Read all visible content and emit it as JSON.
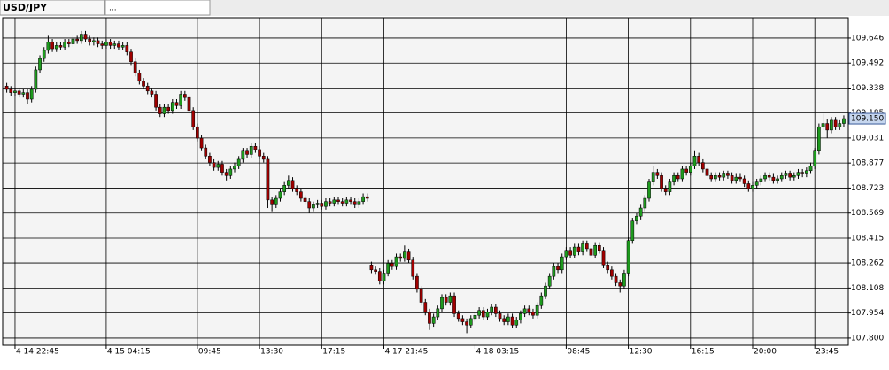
{
  "tabs": [
    "USD/JPY",
    "..."
  ],
  "chart_data": {
    "type": "candlestick",
    "ylim": [
      107.756,
      109.771
    ],
    "yticks": [
      109.646,
      109.492,
      109.338,
      109.185,
      109.031,
      108.877,
      108.723,
      108.569,
      108.415,
      108.262,
      108.108,
      107.954,
      {
        "value": 107.8,
        "label": "107.800"
      }
    ],
    "last_price": {
      "value": 109.15,
      "label": "109.150"
    },
    "grid": true,
    "up_color": "#1e9a1e",
    "down_color": "#a00000",
    "x": [
      null,
      null,
      "4 14 22:45",
      null,
      null,
      null,
      null,
      null,
      null,
      null,
      null,
      null,
      null,
      null,
      null,
      null,
      null,
      null,
      null,
      null,
      null,
      null,
      null,
      null,
      "4 15 04:15",
      null,
      null,
      null,
      null,
      null,
      null,
      null,
      null,
      null,
      null,
      null,
      null,
      null,
      null,
      null,
      null,
      null,
      null,
      null,
      null,
      null,
      "09:45",
      null,
      null,
      null,
      null,
      null,
      null,
      null,
      null,
      null,
      null,
      null,
      null,
      null,
      null,
      "13:30",
      null,
      null,
      null,
      null,
      null,
      null,
      null,
      null,
      null,
      null,
      null,
      null,
      null,
      null,
      "17:15",
      null,
      null,
      null,
      null,
      null,
      null,
      null,
      null,
      null,
      null,
      null,
      null,
      null,
      null,
      "4 17 21:45",
      null,
      null,
      null,
      null,
      null,
      null,
      null,
      null,
      null,
      null,
      null,
      null,
      null,
      null,
      null,
      null,
      null,
      null,
      null,
      null,
      null,
      "4 18 03:15",
      null,
      null,
      null,
      null,
      null,
      null,
      null,
      null,
      null,
      null,
      null,
      null,
      null,
      null,
      null,
      null,
      null,
      null,
      null,
      null,
      null,
      "08:45",
      null,
      null,
      null,
      null,
      null,
      null,
      null,
      null,
      null,
      null,
      null,
      null,
      null,
      null,
      "12:30",
      null,
      null,
      null,
      null,
      null,
      null,
      null,
      null,
      null,
      null,
      null,
      null,
      null,
      null,
      "16:15",
      null,
      null,
      null,
      null,
      null,
      null,
      null,
      null,
      null,
      null,
      null,
      null,
      null,
      null,
      "20:00",
      null,
      null,
      null,
      null,
      null,
      null,
      null,
      null,
      null,
      null,
      null,
      null,
      null,
      null,
      "23:45",
      null,
      null,
      null,
      null,
      null,
      null,
      null
    ],
    "candles": [
      [
        109.35,
        109.37,
        109.31,
        109.33
      ],
      [
        109.33,
        109.35,
        109.29,
        109.31
      ],
      [
        109.31,
        109.34,
        109.29,
        109.32
      ],
      [
        109.32,
        109.34,
        109.28,
        109.3
      ],
      [
        109.3,
        109.33,
        109.28,
        109.31
      ],
      [
        109.31,
        109.33,
        109.24,
        109.27
      ],
      [
        109.27,
        109.35,
        109.25,
        109.33
      ],
      [
        109.33,
        109.47,
        109.31,
        109.45
      ],
      [
        109.45,
        109.54,
        109.43,
        109.52
      ],
      [
        109.52,
        109.59,
        109.5,
        109.57
      ],
      [
        109.57,
        109.66,
        109.55,
        109.62
      ],
      [
        109.62,
        109.64,
        109.56,
        109.58
      ],
      [
        109.58,
        109.62,
        109.56,
        109.6
      ],
      [
        109.6,
        109.62,
        109.57,
        109.59
      ],
      [
        109.59,
        109.64,
        109.57,
        109.62
      ],
      [
        109.62,
        109.64,
        109.59,
        109.61
      ],
      [
        109.61,
        109.66,
        109.59,
        109.64
      ],
      [
        109.64,
        109.66,
        109.61,
        109.63
      ],
      [
        109.63,
        109.69,
        109.61,
        109.67
      ],
      [
        109.67,
        109.69,
        109.62,
        109.64
      ],
      [
        109.64,
        109.66,
        109.6,
        109.62
      ],
      [
        109.62,
        109.65,
        109.6,
        109.63
      ],
      [
        109.63,
        109.65,
        109.59,
        109.61
      ],
      [
        109.61,
        109.63,
        109.58,
        109.6
      ],
      [
        109.6,
        109.64,
        109.58,
        109.62
      ],
      [
        109.62,
        109.64,
        109.58,
        109.6
      ],
      [
        109.6,
        109.63,
        109.58,
        109.61
      ],
      [
        109.61,
        109.63,
        109.57,
        109.59
      ],
      [
        109.59,
        109.62,
        109.57,
        109.6
      ],
      [
        109.6,
        109.62,
        109.54,
        109.56
      ],
      [
        109.56,
        109.58,
        109.48,
        109.5
      ],
      [
        109.5,
        109.52,
        109.41,
        109.43
      ],
      [
        109.43,
        109.45,
        109.36,
        109.38
      ],
      [
        109.38,
        109.4,
        109.33,
        109.35
      ],
      [
        109.35,
        109.37,
        109.3,
        109.32
      ],
      [
        109.32,
        109.34,
        109.28,
        109.3
      ],
      [
        109.3,
        109.32,
        109.2,
        109.22
      ],
      [
        109.22,
        109.24,
        109.16,
        109.18
      ],
      [
        109.18,
        109.24,
        109.16,
        109.22
      ],
      [
        109.22,
        109.24,
        109.18,
        109.2
      ],
      [
        109.2,
        109.27,
        109.18,
        109.25
      ],
      [
        109.25,
        109.27,
        109.21,
        109.23
      ],
      [
        109.23,
        109.32,
        109.21,
        109.3
      ],
      [
        109.3,
        109.32,
        109.26,
        109.28
      ],
      [
        109.28,
        109.3,
        109.18,
        109.2
      ],
      [
        109.2,
        109.22,
        109.08,
        109.1
      ],
      [
        109.1,
        109.12,
        109.01,
        109.03
      ],
      [
        109.03,
        109.05,
        108.95,
        108.97
      ],
      [
        108.97,
        108.99,
        108.9,
        108.92
      ],
      [
        108.92,
        108.94,
        108.86,
        108.88
      ],
      [
        108.88,
        108.9,
        108.83,
        108.85
      ],
      [
        108.85,
        108.89,
        108.83,
        108.87
      ],
      [
        108.87,
        108.89,
        108.8,
        108.82
      ],
      [
        108.82,
        108.84,
        108.77,
        108.8
      ],
      [
        108.8,
        108.86,
        108.78,
        108.84
      ],
      [
        108.84,
        108.88,
        108.82,
        108.86
      ],
      [
        108.86,
        108.92,
        108.84,
        108.9
      ],
      [
        108.9,
        108.97,
        108.88,
        108.95
      ],
      [
        108.95,
        108.97,
        108.91,
        108.93
      ],
      [
        108.93,
        109.0,
        108.91,
        108.98
      ],
      [
        108.98,
        109.0,
        108.94,
        108.96
      ],
      [
        108.96,
        108.98,
        108.9,
        108.92
      ],
      [
        108.92,
        108.94,
        108.88,
        108.9
      ],
      [
        108.9,
        108.92,
        108.6,
        108.65
      ],
      [
        108.65,
        108.67,
        108.58,
        108.62
      ],
      [
        108.62,
        108.68,
        108.6,
        108.66
      ],
      [
        108.66,
        108.72,
        108.64,
        108.7
      ],
      [
        108.7,
        108.76,
        108.68,
        108.74
      ],
      [
        108.74,
        108.8,
        108.72,
        108.77
      ],
      [
        108.77,
        108.79,
        108.7,
        108.72
      ],
      [
        108.72,
        108.74,
        108.68,
        108.7
      ],
      [
        108.7,
        108.72,
        108.64,
        108.66
      ],
      [
        108.66,
        108.68,
        108.62,
        108.64
      ],
      [
        108.64,
        108.66,
        108.57,
        108.6
      ],
      [
        108.6,
        108.64,
        108.58,
        108.62
      ],
      [
        108.62,
        108.65,
        108.6,
        108.63
      ],
      [
        108.63,
        108.65,
        108.59,
        108.61
      ],
      [
        108.61,
        108.66,
        108.59,
        108.64
      ],
      [
        108.64,
        108.66,
        108.61,
        108.63
      ],
      [
        108.63,
        108.67,
        108.61,
        108.65
      ],
      [
        108.65,
        108.67,
        108.62,
        108.64
      ],
      [
        108.64,
        108.66,
        108.61,
        108.63
      ],
      [
        108.63,
        108.67,
        108.61,
        108.65
      ],
      [
        108.65,
        108.67,
        108.62,
        108.64
      ],
      [
        108.64,
        108.66,
        108.6,
        108.62
      ],
      [
        108.62,
        108.66,
        108.6,
        108.64
      ],
      [
        108.64,
        108.69,
        108.62,
        108.67
      ],
      [
        108.67,
        108.69,
        108.64,
        108.66
      ],
      [
        108.25,
        108.27,
        108.2,
        108.22
      ],
      [
        108.22,
        108.24,
        108.19,
        108.21
      ],
      [
        108.21,
        108.23,
        108.13,
        108.15
      ],
      [
        108.15,
        108.22,
        108.13,
        108.2
      ],
      [
        108.2,
        108.28,
        108.18,
        108.26
      ],
      [
        108.26,
        108.28,
        108.22,
        108.24
      ],
      [
        108.24,
        108.32,
        108.22,
        108.3
      ],
      [
        108.3,
        108.32,
        108.27,
        108.29
      ],
      [
        108.29,
        108.37,
        108.27,
        108.33
      ],
      [
        108.33,
        108.35,
        108.26,
        108.28
      ],
      [
        108.28,
        108.3,
        108.16,
        108.18
      ],
      [
        108.18,
        108.2,
        108.08,
        108.1
      ],
      [
        108.1,
        108.12,
        108.0,
        108.02
      ],
      [
        108.02,
        108.04,
        107.94,
        107.96
      ],
      [
        107.96,
        107.98,
        107.85,
        107.89
      ],
      [
        107.89,
        107.95,
        107.87,
        107.93
      ],
      [
        107.93,
        108.0,
        107.91,
        107.98
      ],
      [
        107.98,
        108.07,
        107.96,
        108.05
      ],
      [
        108.05,
        108.07,
        108.0,
        108.02
      ],
      [
        108.02,
        108.08,
        108.0,
        108.06
      ],
      [
        108.06,
        108.08,
        107.93,
        107.95
      ],
      [
        107.95,
        107.97,
        107.9,
        107.92
      ],
      [
        107.92,
        107.94,
        107.88,
        107.9
      ],
      [
        107.9,
        107.92,
        107.83,
        107.88
      ],
      [
        107.88,
        107.94,
        107.86,
        107.92
      ],
      [
        107.92,
        107.96,
        107.9,
        107.94
      ],
      [
        107.94,
        107.99,
        107.92,
        107.97
      ],
      [
        107.97,
        107.99,
        107.91,
        107.93
      ],
      [
        107.93,
        107.98,
        107.91,
        107.96
      ],
      [
        107.96,
        108.01,
        107.94,
        107.99
      ],
      [
        107.99,
        108.01,
        107.93,
        107.95
      ],
      [
        107.95,
        107.97,
        107.9,
        107.92
      ],
      [
        107.92,
        107.94,
        107.88,
        107.9
      ],
      [
        107.9,
        107.95,
        107.88,
        107.93
      ],
      [
        107.93,
        107.95,
        107.86,
        107.88
      ],
      [
        107.88,
        107.93,
        107.86,
        107.91
      ],
      [
        107.91,
        107.97,
        107.89,
        107.95
      ],
      [
        107.95,
        108.0,
        107.93,
        107.98
      ],
      [
        107.98,
        108.0,
        107.94,
        107.96
      ],
      [
        107.96,
        107.98,
        107.92,
        107.94
      ],
      [
        107.94,
        108.02,
        107.92,
        108.0
      ],
      [
        108.0,
        108.08,
        107.98,
        108.06
      ],
      [
        108.06,
        108.14,
        108.04,
        108.12
      ],
      [
        108.12,
        108.2,
        108.1,
        108.18
      ],
      [
        108.18,
        108.26,
        108.16,
        108.24
      ],
      [
        108.24,
        108.26,
        108.2,
        108.22
      ],
      [
        108.22,
        108.32,
        108.2,
        108.3
      ],
      [
        108.3,
        108.36,
        108.28,
        108.34
      ],
      [
        108.34,
        108.36,
        108.29,
        108.31
      ],
      [
        108.31,
        108.38,
        108.29,
        108.36
      ],
      [
        108.36,
        108.38,
        108.31,
        108.33
      ],
      [
        108.33,
        108.4,
        108.31,
        108.38
      ],
      [
        108.38,
        108.4,
        108.33,
        108.35
      ],
      [
        108.35,
        108.37,
        108.29,
        108.31
      ],
      [
        108.31,
        108.39,
        108.29,
        108.37
      ],
      [
        108.37,
        108.39,
        108.32,
        108.34
      ],
      [
        108.34,
        108.36,
        108.23,
        108.25
      ],
      [
        108.25,
        108.27,
        108.2,
        108.22
      ],
      [
        108.22,
        108.24,
        108.16,
        108.18
      ],
      [
        108.18,
        108.2,
        108.12,
        108.14
      ],
      [
        108.14,
        108.16,
        108.08,
        108.12
      ],
      [
        108.12,
        108.22,
        108.1,
        108.2
      ],
      [
        108.2,
        108.42,
        108.18,
        108.4
      ],
      [
        108.4,
        108.54,
        108.38,
        108.52
      ],
      [
        108.52,
        108.57,
        108.5,
        108.55
      ],
      [
        108.55,
        108.62,
        108.53,
        108.6
      ],
      [
        108.6,
        108.68,
        108.58,
        108.66
      ],
      [
        108.66,
        108.78,
        108.64,
        108.76
      ],
      [
        108.76,
        108.86,
        108.74,
        108.82
      ],
      [
        108.82,
        108.84,
        108.78,
        108.8
      ],
      [
        108.8,
        108.82,
        108.7,
        108.72
      ],
      [
        108.72,
        108.74,
        108.68,
        108.7
      ],
      [
        108.7,
        108.78,
        108.68,
        108.76
      ],
      [
        108.76,
        108.82,
        108.74,
        108.8
      ],
      [
        108.8,
        108.82,
        108.76,
        108.78
      ],
      [
        108.78,
        108.86,
        108.76,
        108.84
      ],
      [
        108.84,
        108.86,
        108.8,
        108.82
      ],
      [
        108.82,
        108.88,
        108.8,
        108.86
      ],
      [
        108.86,
        108.95,
        108.84,
        108.92
      ],
      [
        108.92,
        108.94,
        108.86,
        108.88
      ],
      [
        108.88,
        108.9,
        108.82,
        108.84
      ],
      [
        108.84,
        108.86,
        108.78,
        108.8
      ],
      [
        108.8,
        108.82,
        108.76,
        108.78
      ],
      [
        108.78,
        108.82,
        108.76,
        108.8
      ],
      [
        108.8,
        108.82,
        108.77,
        108.79
      ],
      [
        108.79,
        108.83,
        108.77,
        108.81
      ],
      [
        108.81,
        108.83,
        108.78,
        108.8
      ],
      [
        108.8,
        108.82,
        108.75,
        108.77
      ],
      [
        108.77,
        108.81,
        108.75,
        108.79
      ],
      [
        108.79,
        108.81,
        108.76,
        108.78
      ],
      [
        108.78,
        108.8,
        108.73,
        108.75
      ],
      [
        108.75,
        108.77,
        108.7,
        108.72
      ],
      [
        108.72,
        108.76,
        108.7,
        108.74
      ],
      [
        108.74,
        108.78,
        108.72,
        108.76
      ],
      [
        108.76,
        108.8,
        108.74,
        108.78
      ],
      [
        108.78,
        108.82,
        108.76,
        108.8
      ],
      [
        108.8,
        108.82,
        108.77,
        108.79
      ],
      [
        108.79,
        108.81,
        108.75,
        108.77
      ],
      [
        108.77,
        108.8,
        108.75,
        108.78
      ],
      [
        108.78,
        108.82,
        108.76,
        108.8
      ],
      [
        108.8,
        108.83,
        108.78,
        108.81
      ],
      [
        108.81,
        108.83,
        108.77,
        108.79
      ],
      [
        108.79,
        108.82,
        108.77,
        108.8
      ],
      [
        108.8,
        108.84,
        108.78,
        108.82
      ],
      [
        108.82,
        108.84,
        108.79,
        108.81
      ],
      [
        108.81,
        108.85,
        108.79,
        108.83
      ],
      [
        108.83,
        108.88,
        108.81,
        108.86
      ],
      [
        108.86,
        108.97,
        108.84,
        108.95
      ],
      [
        108.95,
        109.12,
        108.93,
        109.1
      ],
      [
        109.1,
        109.18,
        109.08,
        109.12
      ],
      [
        109.12,
        109.15,
        109.03,
        109.08
      ],
      [
        109.08,
        109.16,
        109.06,
        109.14
      ],
      [
        109.14,
        109.16,
        109.08,
        109.1
      ],
      [
        109.1,
        109.14,
        109.08,
        109.12
      ],
      [
        109.12,
        109.17,
        109.1,
        109.15
      ]
    ]
  }
}
